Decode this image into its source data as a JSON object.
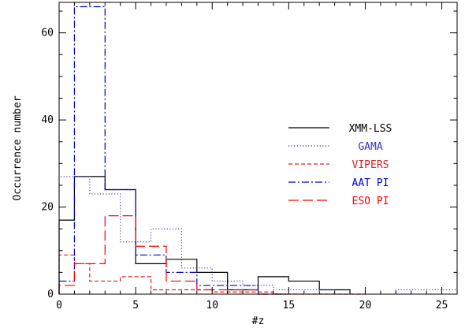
{
  "chart_data": {
    "type": "line",
    "subtype": "step-histogram",
    "xlabel": "#z",
    "ylabel": "Occurrence number",
    "xlim": [
      0,
      26
    ],
    "ylim": [
      0,
      67
    ],
    "x_ticks": [
      0,
      5,
      10,
      15,
      20,
      25
    ],
    "y_ticks": [
      0,
      20,
      40,
      60
    ],
    "grid": false,
    "legend_position": "center-right",
    "series": [
      {
        "name": "XMM-LSS",
        "color": "#000000",
        "dash": "solid",
        "edges": [
          0,
          1,
          3,
          5,
          7,
          9,
          11,
          13,
          15,
          17,
          19
        ],
        "counts": [
          17,
          27,
          24,
          7,
          8,
          5,
          1,
          4,
          3,
          1
        ]
      },
      {
        "name": "GAMA",
        "color": "#3333cc",
        "dash": "dotted",
        "edges": [
          0,
          1,
          2,
          4,
          6,
          8,
          10,
          12,
          14,
          16,
          18,
          20,
          22,
          24,
          26
        ],
        "counts": [
          27,
          27,
          23,
          12,
          15,
          6,
          3,
          2,
          1,
          1,
          0,
          0,
          1,
          1
        ]
      },
      {
        "name": "VIPERS",
        "color": "#dd2222",
        "dash": "dashed",
        "edges": [
          0,
          1,
          2,
          4,
          6,
          8,
          10,
          12,
          14,
          16,
          18,
          20
        ],
        "counts": [
          9,
          7,
          3,
          4,
          1,
          1,
          0.5,
          0.5,
          0,
          0,
          0
        ]
      },
      {
        "name": "AAT PI",
        "color": "#0000cc",
        "dash": "dash-dot",
        "edges": [
          0,
          1,
          3,
          5,
          7,
          9,
          11,
          13,
          15
        ],
        "counts": [
          3,
          66,
          24,
          9,
          5,
          2,
          2,
          0
        ]
      },
      {
        "name": "ESO PI",
        "color": "#ff0000",
        "dash": "long-dash",
        "edges": [
          0,
          1,
          3,
          5,
          7,
          9,
          11,
          13,
          15
        ],
        "counts": [
          2,
          7,
          18,
          11,
          3,
          1,
          1,
          0
        ]
      }
    ]
  }
}
